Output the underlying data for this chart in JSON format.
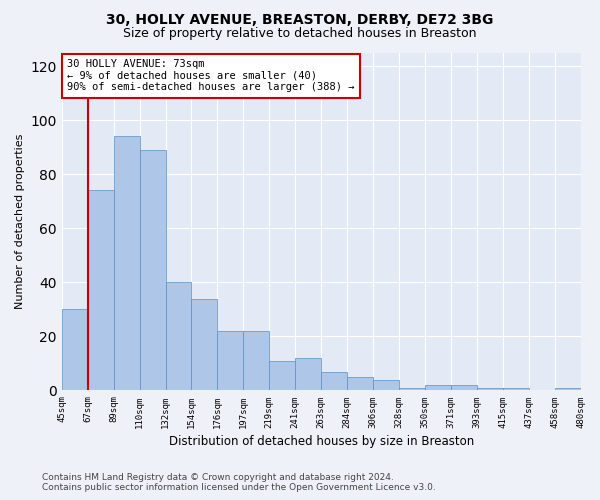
{
  "title1": "30, HOLLY AVENUE, BREASTON, DERBY, DE72 3BG",
  "title2": "Size of property relative to detached houses in Breaston",
  "xlabel": "Distribution of detached houses by size in Breaston",
  "ylabel": "Number of detached properties",
  "bar_values": [
    30,
    74,
    94,
    89,
    40,
    34,
    22,
    22,
    11,
    12,
    7,
    5,
    4,
    1,
    2,
    2,
    1,
    1,
    0,
    1
  ],
  "bin_labels": [
    "45sqm",
    "67sqm",
    "89sqm",
    "110sqm",
    "132sqm",
    "154sqm",
    "176sqm",
    "197sqm",
    "219sqm",
    "241sqm",
    "263sqm",
    "284sqm",
    "306sqm",
    "328sqm",
    "350sqm",
    "371sqm",
    "393sqm",
    "415sqm",
    "437sqm",
    "458sqm",
    "480sqm"
  ],
  "bar_color": "#aec6e8",
  "bar_edge_color": "#5a8fc2",
  "ylim": [
    0,
    125
  ],
  "yticks": [
    0,
    20,
    40,
    60,
    80,
    100,
    120
  ],
  "annotation_box_text": "30 HOLLY AVENUE: 73sqm\n← 9% of detached houses are smaller (40)\n90% of semi-detached houses are larger (388) →",
  "vline_x": 1,
  "vline_color": "#cc0000",
  "box_edge_color": "#cc0000",
  "footer_text": "Contains HM Land Registry data © Crown copyright and database right 2024.\nContains public sector information licensed under the Open Government Licence v3.0.",
  "background_color": "#eef2f8",
  "plot_background_color": "#e4eaf5",
  "grid_color": "#ffffff",
  "title1_fontsize": 10,
  "title2_fontsize": 9,
  "annotation_fontsize": 7.5,
  "footer_fontsize": 6.5
}
